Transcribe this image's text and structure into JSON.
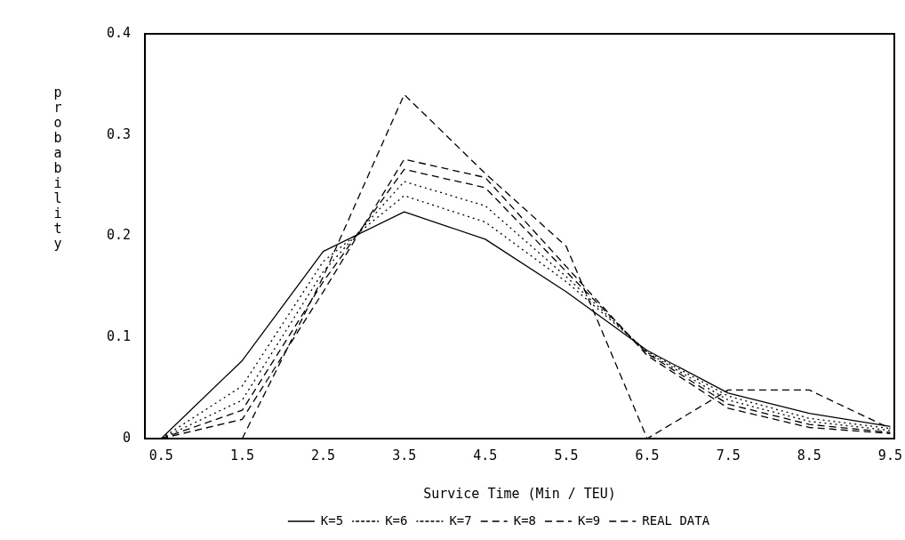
{
  "chart_data": {
    "type": "line",
    "xlabel": "Survice Time (Min / TEU)",
    "ylabel": "probability",
    "x": [
      0.5,
      1.5,
      2.5,
      3.5,
      4.5,
      5.5,
      6.5,
      7.5,
      8.5,
      9.5
    ],
    "xlim": [
      0.3,
      9.55
    ],
    "xticks": [
      {
        "value": 0.5,
        "label": "0.5"
      },
      {
        "value": 1.5,
        "label": "1.5"
      },
      {
        "value": 2.5,
        "label": "2.5"
      },
      {
        "value": 3.5,
        "label": "3.5"
      },
      {
        "value": 4.5,
        "label": "4.5"
      },
      {
        "value": 5.5,
        "label": "5.5"
      },
      {
        "value": 6.5,
        "label": "6.5"
      },
      {
        "value": 7.5,
        "label": "7.5"
      },
      {
        "value": 8.5,
        "label": "8.5"
      },
      {
        "value": 9.5,
        "label": "9.5"
      }
    ],
    "ylim": [
      0,
      0.4
    ],
    "yticks": [
      0,
      {
        "value": 0.1,
        "label": "0.1"
      },
      {
        "value": 0.2,
        "label": "0.2"
      },
      {
        "value": 0.3,
        "label": "0.3"
      },
      {
        "value": 0.4,
        "label": "0.4"
      }
    ],
    "grid": false,
    "legend": "bottom",
    "marker": "none",
    "series": [
      {
        "name": "K=5",
        "color": "#000000",
        "line_style": "solid",
        "values": [
          0,
          0.077,
          0.185,
          0.224,
          0.197,
          0.145,
          0.087,
          0.045,
          0.025,
          0.012
        ]
      },
      {
        "name": "K=6",
        "color": "#000000",
        "line_style": "dotted",
        "values": [
          0,
          0.052,
          0.175,
          0.24,
          0.214,
          0.155,
          0.086,
          0.042,
          0.02,
          0.01
        ]
      },
      {
        "name": "K=7",
        "color": "#000000",
        "line_style": "dotted",
        "values": [
          0,
          0.038,
          0.165,
          0.254,
          0.23,
          0.16,
          0.085,
          0.038,
          0.017,
          0.008
        ]
      },
      {
        "name": "K=8",
        "color": "#000000",
        "line_style": "dashed",
        "values": [
          0,
          0.028,
          0.155,
          0.266,
          0.248,
          0.165,
          0.084,
          0.034,
          0.014,
          0.006
        ]
      },
      {
        "name": "K=9",
        "color": "#000000",
        "line_style": "dashed",
        "values": [
          0,
          0.019,
          0.145,
          0.276,
          0.258,
          0.17,
          0.082,
          0.03,
          0.011,
          0.005
        ]
      },
      {
        "name": "REAL DATA",
        "color": "#000000",
        "line_style": "dashed",
        "values": [
          0,
          0,
          0.16,
          0.34,
          0.262,
          0.19,
          0,
          0.048,
          0.048,
          0.01
        ]
      }
    ]
  }
}
